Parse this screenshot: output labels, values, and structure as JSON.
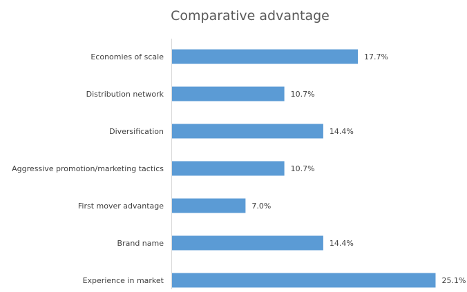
{
  "chart_data": {
    "type": "bar",
    "orientation": "horizontal",
    "title": "Comparative advantage",
    "categories": [
      "Economies of scale",
      "Distribution network",
      "Diversification",
      "Aggressive promotion/marketing tactics",
      "First mover advantage",
      "Brand name",
      "Experience in market"
    ],
    "values": [
      17.7,
      10.7,
      14.4,
      10.7,
      7.0,
      14.4,
      25.1
    ],
    "value_labels": [
      "17.7%",
      "10.7%",
      "14.4%",
      "10.7%",
      "7.0%",
      "14.4%",
      "25.1%"
    ],
    "xlim": [
      0,
      26
    ],
    "grid": false,
    "legend": "none",
    "bar_color": "#5b9bd5",
    "axis_color": "#d9d9d9"
  }
}
